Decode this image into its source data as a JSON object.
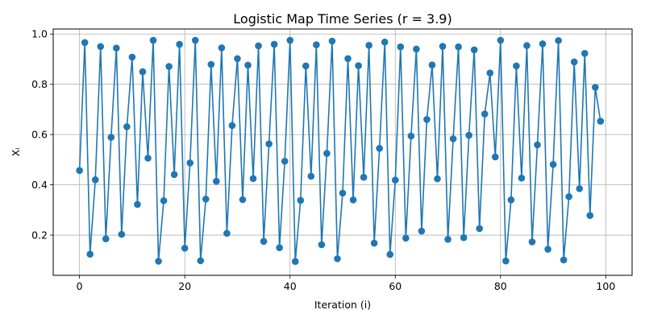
{
  "chart_data": {
    "type": "line",
    "title": "Logistic Map Time Series (r = 3.9)",
    "xlabel": "Iteration (i)",
    "ylabel": "Xᵢ",
    "xlim": [
      -5,
      105
    ],
    "ylim": [
      0.04,
      1.02
    ],
    "xticks": [
      0,
      20,
      40,
      60,
      80,
      100
    ],
    "yticks": [
      0.2,
      0.4,
      0.6,
      0.8,
      1.0
    ],
    "xtick_labels": [
      "0",
      "20",
      "40",
      "60",
      "80",
      "100"
    ],
    "ytick_labels": [
      "0.2",
      "0.4",
      "0.6",
      "0.8",
      "1.0"
    ],
    "grid": true,
    "color": "#1f77b4",
    "marker": "circle",
    "x": [
      0,
      1,
      2,
      3,
      4,
      5,
      6,
      7,
      8,
      9,
      10,
      11,
      12,
      13,
      14,
      15,
      16,
      17,
      18,
      19,
      20,
      21,
      22,
      23,
      24,
      25,
      26,
      27,
      28,
      29,
      30,
      31,
      32,
      33,
      34,
      35,
      36,
      37,
      38,
      39,
      40,
      41,
      42,
      43,
      44,
      45,
      46,
      47,
      48,
      49,
      50,
      51,
      52,
      53,
      54,
      55,
      56,
      57,
      58,
      59,
      60,
      61,
      62,
      63,
      64,
      65,
      66,
      67,
      68,
      69,
      70,
      71,
      72,
      73,
      74,
      75,
      76,
      77,
      78,
      79,
      80,
      81,
      82,
      83,
      84,
      85,
      86,
      87,
      88,
      89,
      90,
      91,
      92,
      93,
      94,
      95,
      96,
      97,
      98,
      99
    ],
    "y": [
      0.457,
      0.966,
      0.124,
      0.42,
      0.95,
      0.185,
      0.589,
      0.944,
      0.203,
      0.631,
      0.908,
      0.322,
      0.85,
      0.506,
      0.975,
      0.096,
      0.337,
      0.871,
      0.441,
      0.959,
      0.148,
      0.487,
      0.975,
      0.098,
      0.343,
      0.879,
      0.414,
      0.945,
      0.207,
      0.636,
      0.902,
      0.341,
      0.876,
      0.425,
      0.953,
      0.175,
      0.563,
      0.959,
      0.15,
      0.494,
      0.975,
      0.095,
      0.338,
      0.873,
      0.434,
      0.957,
      0.162,
      0.525,
      0.972,
      0.106,
      0.367,
      0.902,
      0.34,
      0.874,
      0.43,
      0.955,
      0.168,
      0.545,
      0.968,
      0.123,
      0.419,
      0.949,
      0.188,
      0.594,
      0.94,
      0.216,
      0.66,
      0.877,
      0.424,
      0.951,
      0.183,
      0.583,
      0.949,
      0.19,
      0.597,
      0.937,
      0.226,
      0.682,
      0.845,
      0.511,
      0.975,
      0.097,
      0.34,
      0.873,
      0.427,
      0.954,
      0.173,
      0.559,
      0.961,
      0.144,
      0.481,
      0.974,
      0.101,
      0.353,
      0.889,
      0.385,
      0.923,
      0.278,
      0.788,
      0.653
    ]
  }
}
